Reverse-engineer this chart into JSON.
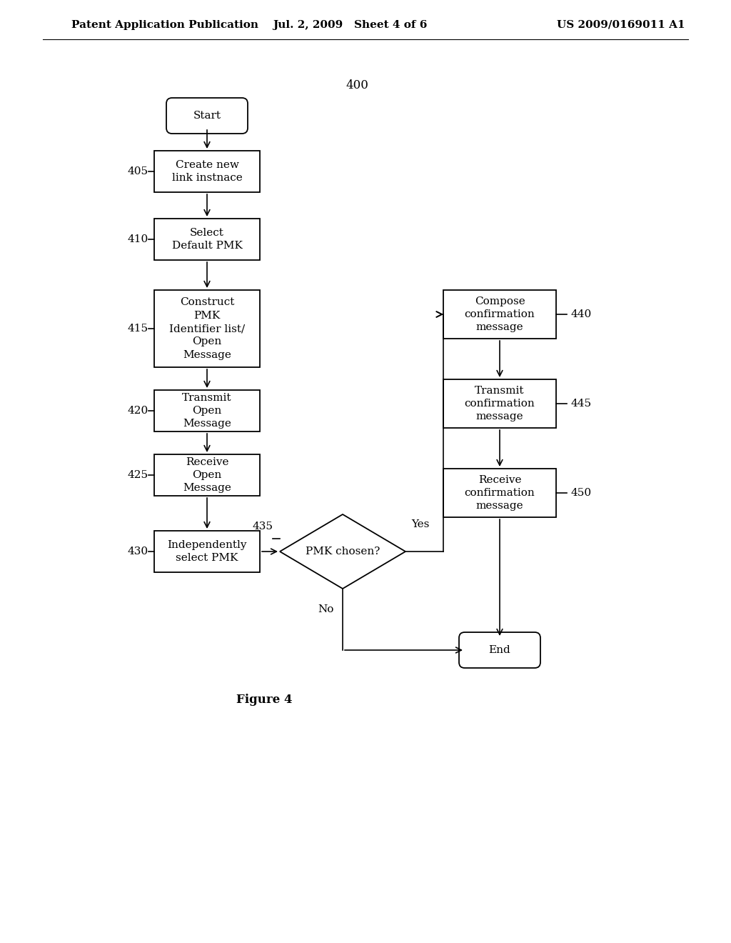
{
  "bg_color": "#ffffff",
  "header_left": "Patent Application Publication",
  "header_mid": "Jul. 2, 2009   Sheet 4 of 6",
  "header_right": "US 2009/0169011 A1",
  "figure_label": "400",
  "figure_caption": "Figure 4",
  "font_size": 11
}
